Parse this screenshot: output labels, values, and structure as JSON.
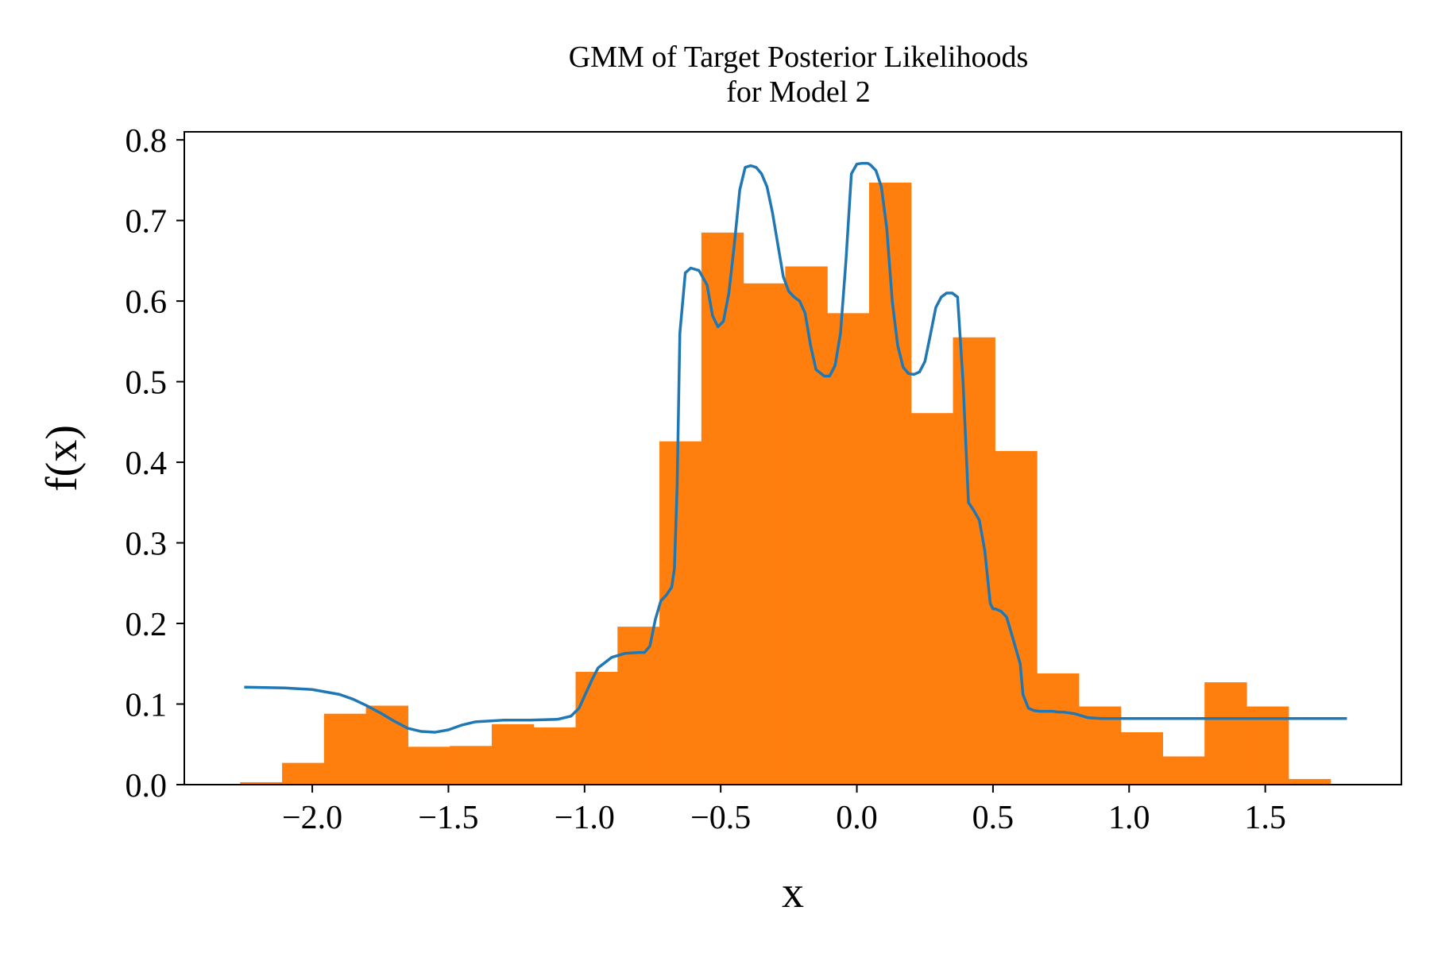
{
  "chart_data": {
    "type": "bar",
    "title": "GMM of Target Posterior Likelihoods",
    "subtitle": "for Model 2",
    "xlabel": "x",
    "ylabel": "f(x)",
    "xlim": [
      -2.47,
      2.0
    ],
    "ylim": [
      0.0,
      0.81
    ],
    "grid": false,
    "x_ticks": [
      -2.0,
      -1.5,
      -1.0,
      -0.5,
      0.0,
      0.5,
      1.0,
      1.5
    ],
    "x_tick_labels": [
      "−2.0",
      "−1.5",
      "−1.0",
      "−0.5",
      "0.0",
      "0.5",
      "1.0",
      "1.5"
    ],
    "y_ticks": [
      0.0,
      0.1,
      0.2,
      0.3,
      0.4,
      0.5,
      0.6,
      0.7,
      0.8
    ],
    "y_tick_labels": [
      "0.0",
      "0.1",
      "0.2",
      "0.3",
      "0.4",
      "0.5",
      "0.6",
      "0.7",
      "0.8"
    ],
    "histogram": {
      "color": "#ff7f0e",
      "bin_edges": [
        -2.265,
        -2.111,
        -1.957,
        -1.803,
        -1.649,
        -1.495,
        -1.341,
        -1.187,
        -1.033,
        -0.879,
        -0.725,
        -0.571,
        -0.417,
        -0.263,
        -0.109,
        0.045,
        0.199,
        0.353,
        0.507,
        0.661,
        0.815,
        0.969,
        1.123,
        1.277,
        1.431,
        1.585,
        1.739
      ],
      "values": [
        0.003,
        0.027,
        0.088,
        0.098,
        0.047,
        0.048,
        0.075,
        0.071,
        0.14,
        0.196,
        0.426,
        0.685,
        0.622,
        0.643,
        0.585,
        0.747,
        0.461,
        0.555,
        0.414,
        0.138,
        0.097,
        0.065,
        0.035,
        0.127,
        0.097,
        0.007
      ]
    },
    "series": [
      {
        "type": "line",
        "color": "#1f77b4",
        "x": [
          -2.25,
          -2.1,
          -2.0,
          -1.9,
          -1.85,
          -1.8,
          -1.75,
          -1.7,
          -1.65,
          -1.6,
          -1.55,
          -1.5,
          -1.45,
          -1.4,
          -1.35,
          -1.3,
          -1.2,
          -1.1,
          -1.05,
          -1.02,
          -1.0,
          -0.97,
          -0.95,
          -0.9,
          -0.85,
          -0.8,
          -0.78,
          -0.76,
          -0.74,
          -0.72,
          -0.7,
          -0.68,
          -0.67,
          -0.66,
          -0.65,
          -0.63,
          -0.61,
          -0.58,
          -0.55,
          -0.53,
          -0.51,
          -0.49,
          -0.47,
          -0.45,
          -0.43,
          -0.41,
          -0.39,
          -0.37,
          -0.35,
          -0.33,
          -0.31,
          -0.29,
          -0.27,
          -0.25,
          -0.23,
          -0.21,
          -0.19,
          -0.17,
          -0.15,
          -0.12,
          -0.1,
          -0.08,
          -0.06,
          -0.04,
          -0.02,
          0.0,
          0.02,
          0.04,
          0.05,
          0.07,
          0.09,
          0.11,
          0.13,
          0.15,
          0.17,
          0.19,
          0.21,
          0.23,
          0.25,
          0.27,
          0.29,
          0.31,
          0.33,
          0.35,
          0.37,
          0.39,
          0.41,
          0.43,
          0.45,
          0.47,
          0.49,
          0.5,
          0.51,
          0.53,
          0.55,
          0.57,
          0.6,
          0.61,
          0.63,
          0.65,
          0.67,
          0.68,
          0.7,
          0.72,
          0.74,
          0.76,
          0.78,
          0.8,
          0.85,
          0.9,
          0.95,
          1.0,
          1.05,
          1.1,
          1.15,
          1.2,
          1.25,
          1.3,
          1.4,
          1.5,
          1.6,
          1.7,
          1.8
        ],
        "y": [
          0.121,
          0.12,
          0.118,
          0.112,
          0.106,
          0.098,
          0.089,
          0.079,
          0.07,
          0.066,
          0.065,
          0.068,
          0.074,
          0.078,
          0.079,
          0.08,
          0.08,
          0.081,
          0.085,
          0.095,
          0.11,
          0.132,
          0.145,
          0.158,
          0.163,
          0.164,
          0.164,
          0.172,
          0.205,
          0.228,
          0.235,
          0.245,
          0.268,
          0.37,
          0.56,
          0.635,
          0.641,
          0.638,
          0.62,
          0.582,
          0.568,
          0.575,
          0.61,
          0.67,
          0.738,
          0.766,
          0.768,
          0.766,
          0.758,
          0.742,
          0.71,
          0.67,
          0.63,
          0.612,
          0.605,
          0.6,
          0.585,
          0.545,
          0.515,
          0.507,
          0.507,
          0.52,
          0.56,
          0.65,
          0.758,
          0.77,
          0.771,
          0.771,
          0.769,
          0.762,
          0.742,
          0.69,
          0.6,
          0.545,
          0.518,
          0.51,
          0.509,
          0.512,
          0.525,
          0.558,
          0.592,
          0.605,
          0.61,
          0.61,
          0.605,
          0.5,
          0.35,
          0.34,
          0.328,
          0.29,
          0.225,
          0.218,
          0.218,
          0.215,
          0.208,
          0.185,
          0.15,
          0.112,
          0.095,
          0.092,
          0.091,
          0.091,
          0.091,
          0.091,
          0.09,
          0.09,
          0.089,
          0.088,
          0.083,
          0.082,
          0.082,
          0.082,
          0.082,
          0.082,
          0.082,
          0.082,
          0.082,
          0.082,
          0.082,
          0.082,
          0.082,
          0.082,
          0.082
        ]
      }
    ]
  }
}
